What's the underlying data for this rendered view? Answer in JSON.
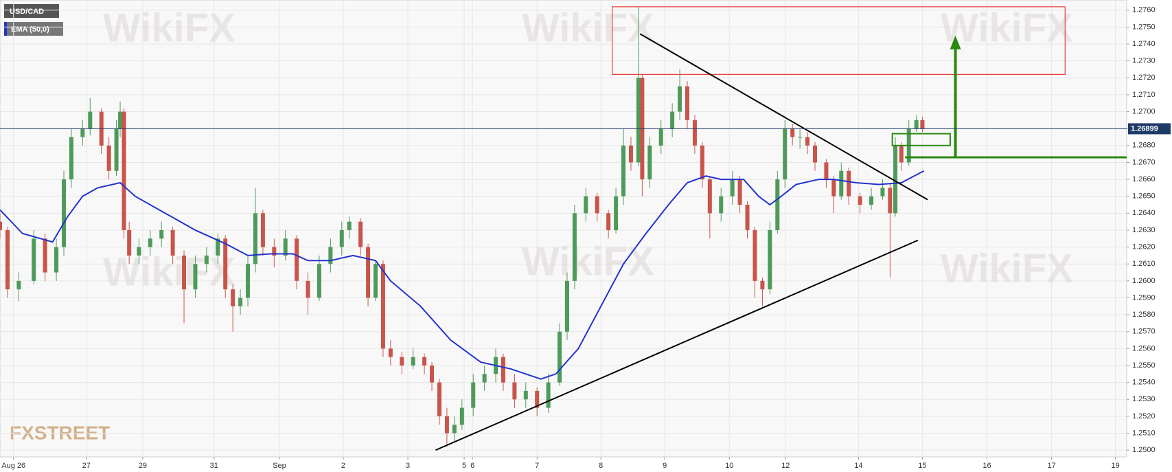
{
  "chart_data": {
    "type": "candlestick",
    "title": "USD/CAD",
    "indicator": "EMA (50,0)",
    "watermark": "WikiFX",
    "logo": "FXSTREET",
    "xlim": [
      0,
      1500
    ],
    "ylim": [
      1.2496,
      1.2766
    ],
    "grid": true,
    "up_color": "#4e9a5b",
    "down_color": "#c9544a",
    "xticks": [
      {
        "value": 18,
        "label": "Aug 26"
      },
      {
        "value": 115,
        "label": "27"
      },
      {
        "value": 190,
        "label": "29"
      },
      {
        "value": 285,
        "label": "31"
      },
      {
        "value": 372,
        "label": "Sep"
      },
      {
        "value": 457,
        "label": "2"
      },
      {
        "value": 543,
        "label": "3"
      },
      {
        "value": 618,
        "label": "5"
      },
      {
        "value": 629,
        "label": "6"
      },
      {
        "value": 715,
        "label": "7"
      },
      {
        "value": 800,
        "label": "8"
      },
      {
        "value": 885,
        "label": "9"
      },
      {
        "value": 971,
        "label": "10"
      },
      {
        "value": 1046,
        "label": "12"
      },
      {
        "value": 1143,
        "label": "14"
      },
      {
        "value": 1228,
        "label": "15"
      },
      {
        "value": 1314,
        "label": "16"
      },
      {
        "value": 1400,
        "label": "17"
      },
      {
        "value": 1485,
        "label": "19"
      }
    ],
    "yticks": [
      {
        "value": 1.25,
        "label": "1.2500"
      },
      {
        "value": 1.251,
        "label": "1.2510"
      },
      {
        "value": 1.252,
        "label": "1.2520"
      },
      {
        "value": 1.253,
        "label": "1.2530"
      },
      {
        "value": 1.254,
        "label": "1.2540"
      },
      {
        "value": 1.255,
        "label": "1.2550"
      },
      {
        "value": 1.256,
        "label": "1.2560"
      },
      {
        "value": 1.257,
        "label": "1.2570"
      },
      {
        "value": 1.258,
        "label": "1.2580"
      },
      {
        "value": 1.259,
        "label": "1.2590"
      },
      {
        "value": 1.26,
        "label": "1.2600"
      },
      {
        "value": 1.261,
        "label": "1.2610"
      },
      {
        "value": 1.262,
        "label": "1.2620"
      },
      {
        "value": 1.263,
        "label": "1.2630"
      },
      {
        "value": 1.264,
        "label": "1.2640"
      },
      {
        "value": 1.265,
        "label": "1.2650"
      },
      {
        "value": 1.266,
        "label": "1.2660"
      },
      {
        "value": 1.267,
        "label": "1.2670"
      },
      {
        "value": 1.268,
        "label": "1.2680"
      },
      {
        "value": 1.269,
        "label": "1.2690"
      },
      {
        "value": 1.27,
        "label": "1.2700"
      },
      {
        "value": 1.271,
        "label": "1.2710"
      },
      {
        "value": 1.272,
        "label": "1.2720"
      },
      {
        "value": 1.273,
        "label": "1.2730"
      },
      {
        "value": 1.274,
        "label": "1.2740"
      },
      {
        "value": 1.275,
        "label": "1.2750"
      },
      {
        "value": 1.276,
        "label": "1.2760"
      }
    ],
    "last_price": 1.26899,
    "candles": {
      "x": [
        0,
        10,
        25,
        45,
        60,
        75,
        85,
        95,
        110,
        120,
        135,
        145,
        155,
        160,
        165,
        172,
        185,
        200,
        215,
        230,
        245,
        260,
        275,
        290,
        300,
        310,
        320,
        330,
        340,
        350,
        365,
        380,
        395,
        410,
        425,
        440,
        455,
        465,
        480,
        490,
        500,
        510,
        520,
        535,
        550,
        565,
        575,
        585,
        595,
        605,
        615,
        630,
        645,
        660,
        670,
        685,
        700,
        715,
        730,
        745,
        755,
        765,
        780,
        795,
        810,
        820,
        830,
        840,
        850,
        855,
        865,
        880,
        895,
        905,
        915,
        925,
        935,
        945,
        960,
        975,
        985,
        995,
        1005,
        1015,
        1025,
        1035,
        1045,
        1055,
        1065,
        1075,
        1085,
        1100,
        1110,
        1120,
        1130,
        1145,
        1160,
        1175,
        1185,
        1192,
        1200,
        1210,
        1220,
        1228
      ],
      "open": [
        1.2635,
        1.263,
        1.2595,
        1.26,
        1.2625,
        1.2605,
        1.262,
        1.266,
        1.2685,
        1.269,
        1.27,
        1.268,
        1.2665,
        1.269,
        1.27,
        1.263,
        1.2615,
        1.262,
        1.2625,
        1.263,
        1.2615,
        1.2595,
        1.261,
        1.2615,
        1.2625,
        1.2595,
        1.2585,
        1.259,
        1.261,
        1.264,
        1.262,
        1.2615,
        1.2625,
        1.26,
        1.259,
        1.261,
        1.262,
        1.263,
        1.2635,
        1.262,
        1.259,
        1.261,
        1.256,
        1.2555,
        1.255,
        1.2555,
        1.255,
        1.254,
        1.252,
        1.251,
        1.2515,
        1.2525,
        1.254,
        1.2545,
        1.2555,
        1.254,
        1.253,
        1.2535,
        1.2525,
        1.254,
        1.257,
        1.26,
        1.264,
        1.265,
        1.264,
        1.263,
        1.265,
        1.268,
        1.267,
        1.272,
        1.266,
        1.268,
        1.269,
        1.27,
        1.2715,
        1.2695,
        1.268,
        1.266,
        1.264,
        1.265,
        1.266,
        1.2645,
        1.263,
        1.26,
        1.2595,
        1.263,
        1.266,
        1.269,
        1.2685,
        1.2685,
        1.268,
        1.267,
        1.266,
        1.265,
        1.2665,
        1.265,
        1.2645,
        1.265,
        1.2655,
        1.264,
        1.268,
        1.267,
        1.269,
        1.2695
      ],
      "high": [
        1.264,
        1.2632,
        1.2605,
        1.263,
        1.2628,
        1.2625,
        1.2665,
        1.269,
        1.2695,
        1.2708,
        1.2702,
        1.2685,
        1.2695,
        1.2706,
        1.2702,
        1.2635,
        1.2625,
        1.263,
        1.2635,
        1.2632,
        1.2618,
        1.2615,
        1.262,
        1.2628,
        1.2627,
        1.2598,
        1.2595,
        1.2615,
        1.2655,
        1.2642,
        1.2625,
        1.263,
        1.2627,
        1.2605,
        1.2615,
        1.2625,
        1.2635,
        1.2638,
        1.2637,
        1.2622,
        1.2612,
        1.2612,
        1.2565,
        1.2558,
        1.256,
        1.2557,
        1.2552,
        1.2542,
        1.2525,
        1.252,
        1.253,
        1.2545,
        1.255,
        1.256,
        1.2557,
        1.2545,
        1.254,
        1.2537,
        1.2545,
        1.2575,
        1.2605,
        1.2645,
        1.2655,
        1.2652,
        1.2642,
        1.2655,
        1.269,
        1.2685,
        1.2762,
        1.2722,
        1.2685,
        1.2695,
        1.2705,
        1.2725,
        1.2718,
        1.2698,
        1.2682,
        1.2662,
        1.2655,
        1.2665,
        1.2662,
        1.2647,
        1.2632,
        1.2602,
        1.2635,
        1.2665,
        1.2695,
        1.2693,
        1.269,
        1.2688,
        1.2682,
        1.2672,
        1.2662,
        1.267,
        1.2667,
        1.2652,
        1.2655,
        1.266,
        1.2658,
        1.2685,
        1.2682,
        1.2695,
        1.2698,
        1.2697
      ],
      "low": [
        1.2625,
        1.259,
        1.2588,
        1.2598,
        1.26,
        1.26,
        1.2615,
        1.2655,
        1.268,
        1.2686,
        1.2675,
        1.266,
        1.2662,
        1.2685,
        1.2625,
        1.261,
        1.261,
        1.2615,
        1.262,
        1.261,
        1.2575,
        1.259,
        1.2605,
        1.261,
        1.259,
        1.257,
        1.258,
        1.2585,
        1.2605,
        1.2615,
        1.2608,
        1.2612,
        1.2595,
        1.258,
        1.2588,
        1.2605,
        1.2615,
        1.2625,
        1.2615,
        1.2585,
        1.2588,
        1.2555,
        1.255,
        1.2545,
        1.2548,
        1.2545,
        1.2535,
        1.2515,
        1.2502,
        1.2505,
        1.2512,
        1.252,
        1.2535,
        1.254,
        1.2535,
        1.2525,
        1.2525,
        1.252,
        1.2522,
        1.2538,
        1.2565,
        1.2595,
        1.2635,
        1.2635,
        1.2625,
        1.2628,
        1.2645,
        1.2665,
        1.2668,
        1.265,
        1.2655,
        1.2675,
        1.2685,
        1.2695,
        1.269,
        1.2675,
        1.2655,
        1.2625,
        1.2635,
        1.2645,
        1.264,
        1.2625,
        1.259,
        1.2585,
        1.2592,
        1.2628,
        1.2655,
        1.268,
        1.2678,
        1.2675,
        1.2665,
        1.2655,
        1.264,
        1.2648,
        1.2645,
        1.264,
        1.2642,
        1.2648,
        1.2602,
        1.2638,
        1.2665,
        1.2668,
        1.2688,
        1.2688
      ],
      "close": [
        1.263,
        1.2595,
        1.26,
        1.2625,
        1.2605,
        1.262,
        1.266,
        1.2685,
        1.269,
        1.27,
        1.268,
        1.2665,
        1.269,
        1.27,
        1.263,
        1.2615,
        1.262,
        1.2625,
        1.263,
        1.2615,
        1.2595,
        1.261,
        1.2615,
        1.2625,
        1.2595,
        1.2585,
        1.259,
        1.261,
        1.264,
        1.262,
        1.2615,
        1.2625,
        1.26,
        1.259,
        1.261,
        1.262,
        1.263,
        1.2635,
        1.262,
        1.259,
        1.261,
        1.256,
        1.2555,
        1.255,
        1.2555,
        1.255,
        1.254,
        1.252,
        1.251,
        1.2515,
        1.2525,
        1.254,
        1.2545,
        1.2555,
        1.254,
        1.253,
        1.2535,
        1.2525,
        1.254,
        1.257,
        1.26,
        1.264,
        1.265,
        1.264,
        1.263,
        1.265,
        1.268,
        1.267,
        1.272,
        1.266,
        1.268,
        1.269,
        1.27,
        1.2715,
        1.2695,
        1.268,
        1.266,
        1.264,
        1.265,
        1.266,
        1.2645,
        1.263,
        1.26,
        1.2595,
        1.263,
        1.266,
        1.269,
        1.2685,
        1.2685,
        1.268,
        1.267,
        1.266,
        1.265,
        1.2665,
        1.265,
        1.2645,
        1.265,
        1.2655,
        1.264,
        1.268,
        1.267,
        1.269,
        1.2695,
        1.269
      ]
    },
    "ema": {
      "name": "EMA (50,0)",
      "color": "#2233cc",
      "x": [
        0,
        30,
        70,
        90,
        110,
        130,
        160,
        180,
        220,
        260,
        300,
        330,
        360,
        390,
        410,
        440,
        470,
        500,
        520,
        560,
        600,
        640,
        680,
        720,
        740,
        770,
        800,
        830,
        860,
        890,
        915,
        940,
        960,
        990,
        1010,
        1025,
        1040,
        1060,
        1090,
        1110,
        1140,
        1170,
        1200,
        1230
      ],
      "values": [
        1.2642,
        1.2628,
        1.2623,
        1.2638,
        1.265,
        1.2655,
        1.2658,
        1.265,
        1.264,
        1.263,
        1.2622,
        1.2615,
        1.2616,
        1.2616,
        1.2612,
        1.2612,
        1.2615,
        1.2612,
        1.26,
        1.2585,
        1.2565,
        1.2552,
        1.2548,
        1.2542,
        1.2545,
        1.256,
        1.2585,
        1.261,
        1.2628,
        1.2645,
        1.2658,
        1.2662,
        1.266,
        1.266,
        1.265,
        1.2645,
        1.265,
        1.2657,
        1.266,
        1.266,
        1.2658,
        1.2657,
        1.2658,
        1.2665
      ]
    },
    "zone": {
      "x": [
        815,
        1418
      ],
      "y": [
        1.2722,
        1.2762
      ],
      "color": "#e53935"
    },
    "trendlines": [
      {
        "x": [
          852,
          1235
        ],
        "y": [
          1.2746,
          1.2648
        ]
      },
      {
        "x": [
          580,
          1222
        ],
        "y": [
          1.25,
          1.2624
        ]
      }
    ],
    "breakout_box": {
      "x": [
        1188,
        1265
      ],
      "y": [
        1.268,
        1.2687
      ],
      "color": "#2a8a10"
    },
    "target_line": {
      "x": [
        1205,
        1500
      ],
      "y": 1.2673,
      "color": "#2a8a10"
    },
    "target_arrow": {
      "x": 1272,
      "y": [
        1.2673,
        1.2745
      ],
      "color": "#2a8a10"
    }
  }
}
